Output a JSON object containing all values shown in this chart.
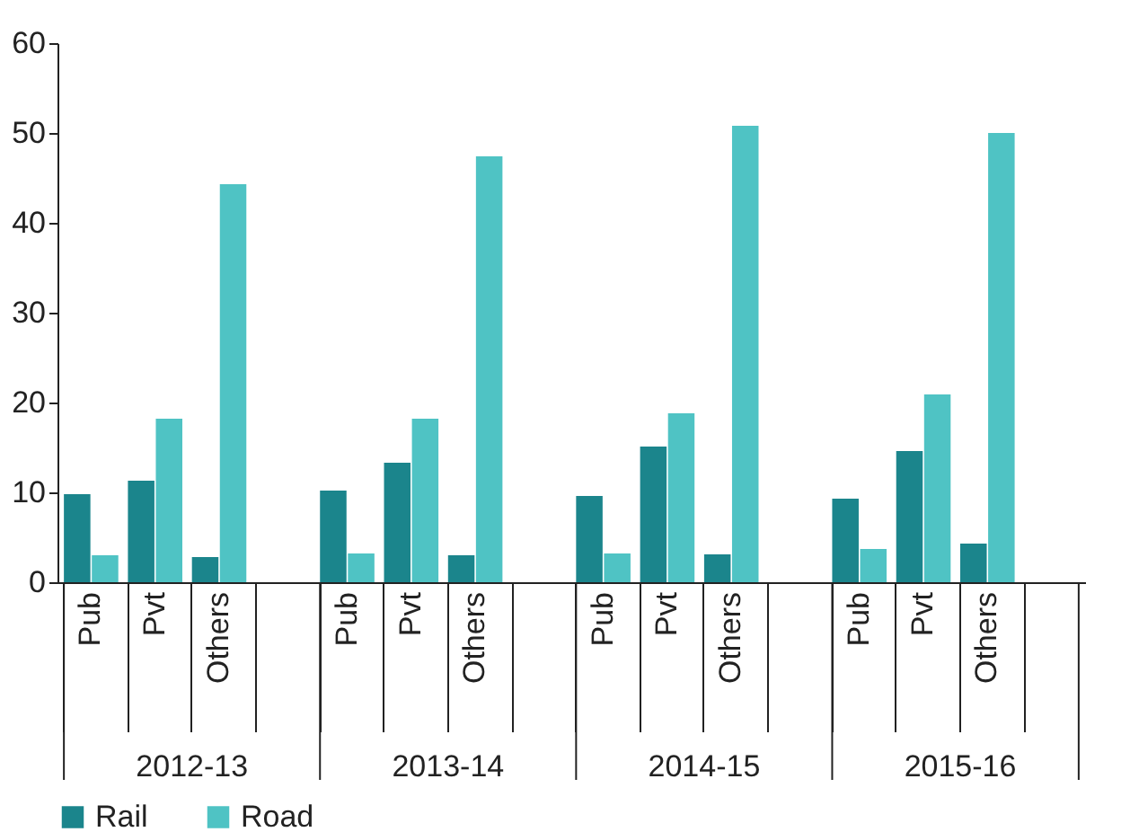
{
  "chart_data": {
    "type": "bar",
    "categories": [
      "Pub",
      "Pvt",
      "Others",
      null,
      "Pub",
      "Pvt",
      "Others",
      null,
      "Pub",
      "Pvt",
      "Others",
      null,
      "Pub",
      "Pvt",
      "Others",
      null
    ],
    "series": [
      {
        "name": "Rail",
        "color": "#1b858c",
        "values": [
          9.8,
          11.3,
          2.8,
          null,
          10.2,
          13.3,
          3.0,
          null,
          9.6,
          15.1,
          3.1,
          null,
          9.3,
          14.6,
          4.3,
          null
        ]
      },
      {
        "name": "Road",
        "color": "#4fc3c4",
        "values": [
          3.0,
          18.2,
          44.3,
          null,
          3.2,
          18.2,
          47.4,
          null,
          3.2,
          18.8,
          50.8,
          null,
          3.7,
          20.9,
          50.0,
          null
        ]
      }
    ],
    "annotations": [
      "2012-13",
      "2013-14",
      "2014-15",
      "2015-16"
    ],
    "ylim": [
      0,
      60
    ],
    "yticks": [
      0,
      10,
      20,
      30,
      40,
      50,
      60
    ],
    "grid": false,
    "legend": "bottom"
  }
}
